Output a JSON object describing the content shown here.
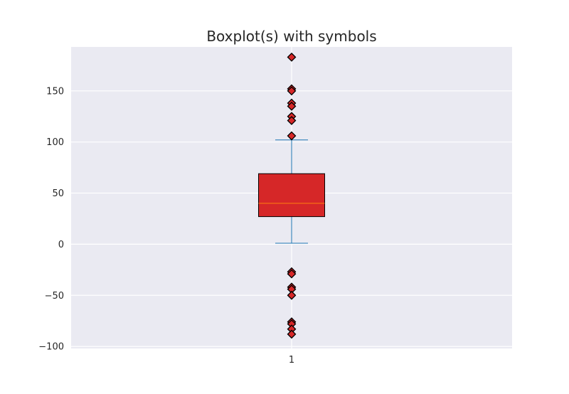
{
  "chart_data": {
    "type": "box",
    "title": "Boxplot(s) with symbols",
    "xlabel": "",
    "ylabel": "",
    "categories": [
      "1"
    ],
    "ylim": [
      -102,
      193
    ],
    "yticks": [
      -100,
      -50,
      0,
      50,
      100,
      150
    ],
    "ytick_labels": [
      "−100",
      "−50",
      "0",
      "50",
      "100",
      "150"
    ],
    "grid": true,
    "boxes": [
      {
        "category": "1",
        "whisker_low": 1,
        "q1": 27,
        "median": 40,
        "q3": 69,
        "whisker_high": 102,
        "outliers": [
          183,
          152,
          150,
          138,
          135,
          125,
          121,
          106,
          -27,
          -29,
          -42,
          -44,
          -50,
          -76,
          -78,
          -83,
          -88
        ]
      }
    ],
    "colors": {
      "plot_background": "#eaeaf2",
      "grid": "#ffffff",
      "box_fill": "#d62728",
      "box_edge": "#000000",
      "median": "#ff7f0e",
      "whisker": "#1f77b4",
      "outlier_fill": "#d62728",
      "outlier_edge": "#000000"
    },
    "outlier_marker": "diamond"
  }
}
